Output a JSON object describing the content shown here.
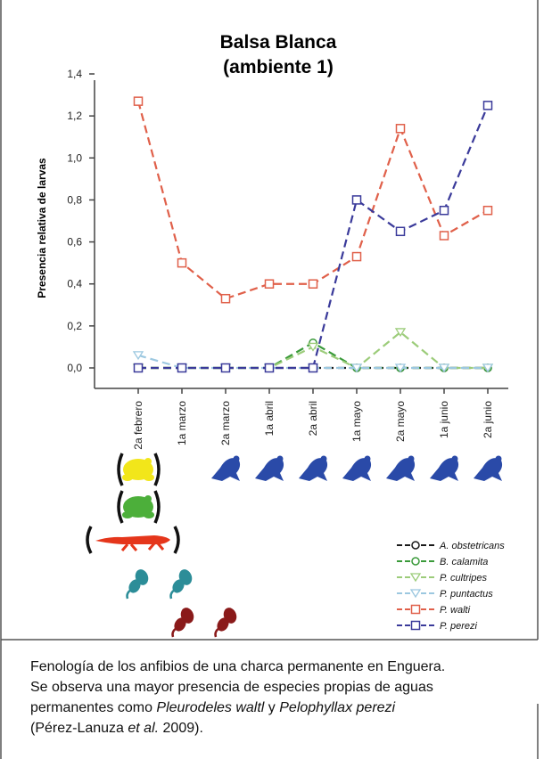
{
  "chart_data": {
    "type": "line",
    "title": "Balsa Blanca",
    "subtitle": "(ambiente 1)",
    "ylabel": "Presencia relativa de larvas",
    "xlabel": "",
    "ylim": [
      0,
      1.4
    ],
    "yticks": [
      "0,0",
      "0,2",
      "0,4",
      "0,6",
      "0,8",
      "1,0",
      "1,2",
      "1,4"
    ],
    "categories": [
      "2a febrero",
      "1a marzo",
      "2a marzo",
      "1a abril",
      "2a abril",
      "1a mayo",
      "2a mayo",
      "1a junio",
      "2a junio"
    ],
    "grid": false,
    "legend_position": "bottom-right",
    "series": [
      {
        "name": "A. obstetricans",
        "color": "#1a1a1a",
        "marker": "circle",
        "values": [
          0,
          0,
          0,
          0,
          0,
          0,
          0,
          0,
          0
        ]
      },
      {
        "name": "B. calamita",
        "color": "#3a9a3a",
        "marker": "circle",
        "values": [
          0,
          0,
          0,
          0,
          0.12,
          0,
          0,
          0,
          0
        ]
      },
      {
        "name": "P. cultripes",
        "color": "#9ccc7a",
        "marker": "triangle",
        "values": [
          0,
          0,
          0,
          0,
          0.1,
          0,
          0.17,
          0,
          0
        ]
      },
      {
        "name": "P. puntactus",
        "color": "#9cc8e0",
        "marker": "triangle",
        "values": [
          0.06,
          0,
          0,
          0,
          0,
          0,
          0,
          0,
          0
        ]
      },
      {
        "name": "P. walti",
        "color": "#e0604a",
        "marker": "square",
        "values": [
          1.27,
          0.5,
          0.33,
          0.4,
          0.4,
          0.53,
          1.14,
          0.63,
          0.75
        ]
      },
      {
        "name": "P. perezi",
        "color": "#3a3a9a",
        "marker": "square",
        "values": [
          0,
          0,
          0,
          0,
          0,
          0.8,
          0.65,
          0.75,
          1.25
        ]
      }
    ]
  },
  "species_colors": {
    "yellow": "#f2e61a",
    "green": "#4caf3a",
    "red_newt": "#e5361b",
    "teal": "#2c8d98",
    "darkred": "#8a1a1a",
    "blue_frog": "#2a4aa8"
  },
  "caption": {
    "line1": "Fenología de los anfibios de una charca permanente en Enguera.",
    "line2": "Se observa una mayor presencia de especies propias de aguas",
    "line3_a": "permanentes como ",
    "line3_b": "Pleurodeles waltl",
    "line3_c": " y ",
    "line3_d": "Pelophyllax perezi",
    "line4_a": "(Pérez-Lanuza ",
    "line4_b": "et al.",
    "line4_c": " 2009)."
  }
}
